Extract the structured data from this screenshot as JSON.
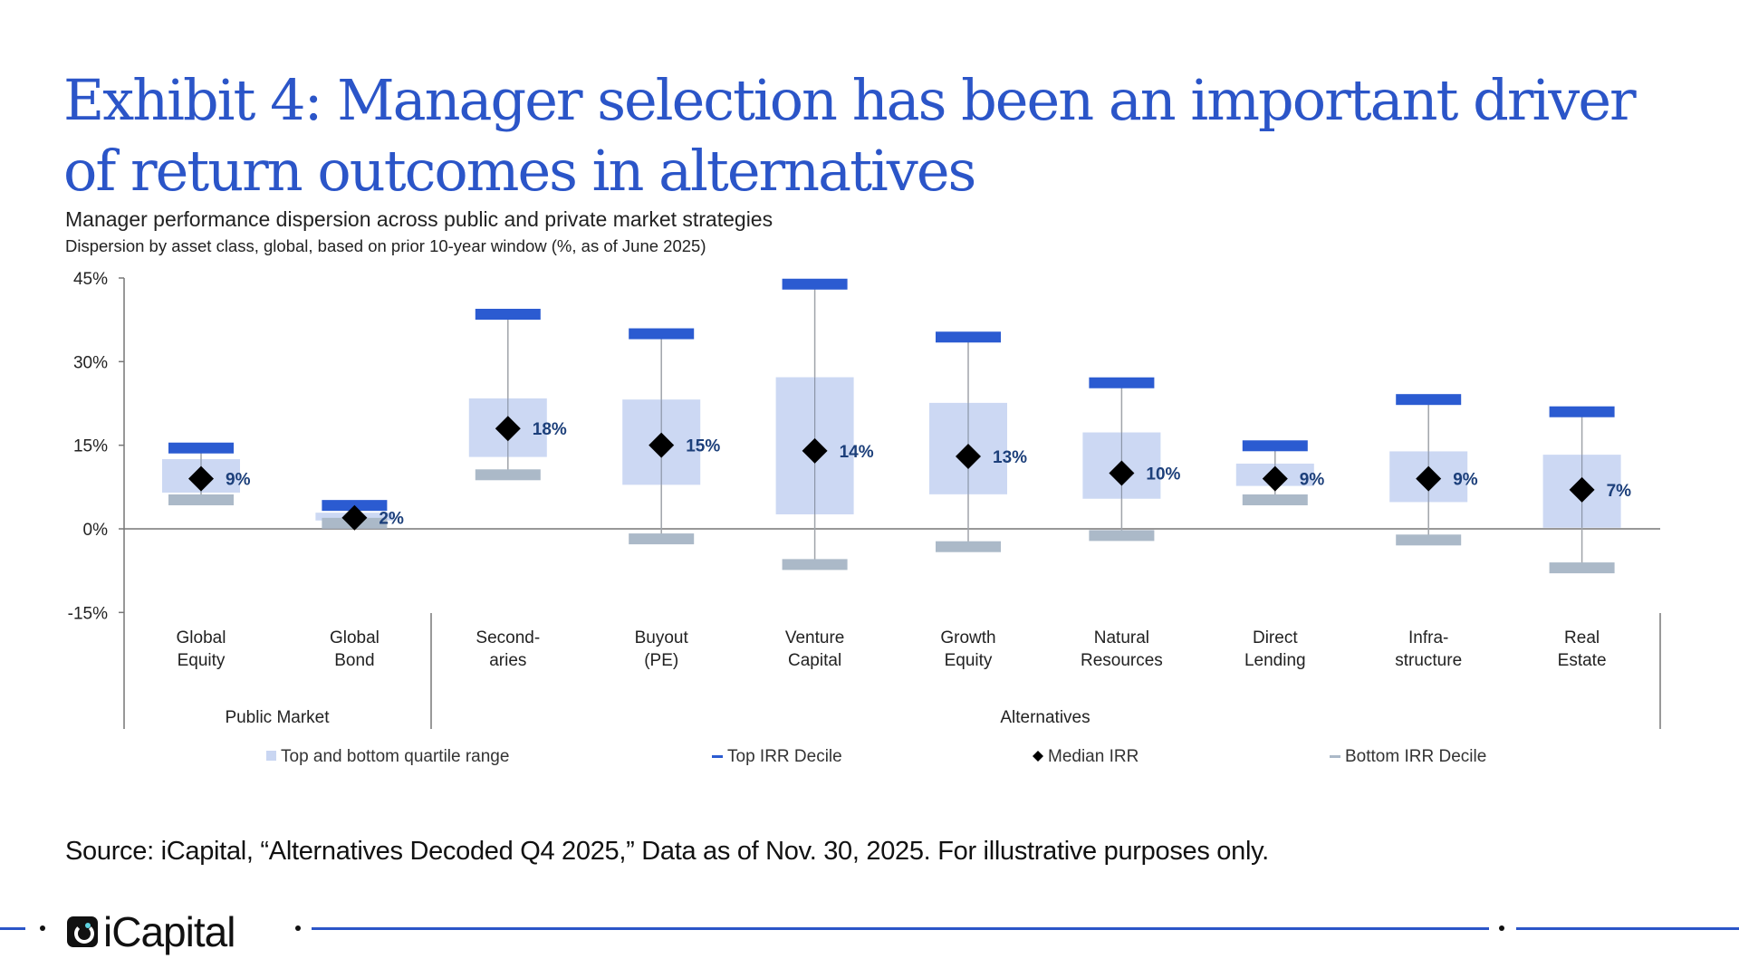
{
  "title": "Exhibit 4: Manager selection has been an important driver of return outcomes in alternatives",
  "subtitle": "Manager performance dispersion across public and private market strategies",
  "subsubtitle": "Dispersion by asset class, global, based on prior 10-year window (%, as of June 2025)",
  "chart_data": {
    "type": "box-range",
    "ylim": [
      -15,
      45
    ],
    "yticks": [
      45,
      30,
      15,
      0,
      -15
    ],
    "ytick_labels": [
      "45%",
      "30%",
      "15%",
      "0%",
      "-15%"
    ],
    "grid": false,
    "legend_position": "bottom",
    "categories": [
      [
        "Global",
        "Equity"
      ],
      [
        "Global",
        "Bond"
      ],
      [
        "Second-",
        "aries"
      ],
      [
        "Buyout",
        "(PE)"
      ],
      [
        "Venture",
        "Capital"
      ],
      [
        "Growth",
        "Equity"
      ],
      [
        "Natural",
        "Resources"
      ],
      [
        "Direct",
        "Lending"
      ],
      [
        "Infra-",
        "structure"
      ],
      [
        "Real",
        "Estate"
      ]
    ],
    "groups": [
      {
        "label": "Public Market",
        "categories": 2
      },
      {
        "label": "Alternatives",
        "categories": 8
      }
    ],
    "series": [
      {
        "name": "Top IRR Decile",
        "values": [
          14.5,
          4.2,
          38.5,
          35.0,
          43.9,
          34.4,
          26.2,
          14.9,
          23.2,
          21.0
        ],
        "color": "#2b5bd1"
      },
      {
        "name": "Top and bottom quartile range (top)",
        "values": [
          12.5,
          2.9,
          23.4,
          23.2,
          27.2,
          22.6,
          17.3,
          11.7,
          13.9,
          13.3
        ],
        "color": "#c9d6f2"
      },
      {
        "name": "Top and bottom quartile range (bottom)",
        "values": [
          6.5,
          1.5,
          12.9,
          7.9,
          2.6,
          6.2,
          5.4,
          7.7,
          4.8,
          0.2
        ],
        "color": "#c9d6f2"
      },
      {
        "name": "Median IRR",
        "values": [
          9,
          2,
          18,
          15,
          14,
          13,
          10,
          9,
          9,
          7
        ],
        "labels": [
          "9%",
          "2%",
          "18%",
          "15%",
          "14%",
          "13%",
          "10%",
          "9%",
          "9%",
          "7%"
        ],
        "color": "#000000"
      },
      {
        "name": "Bottom IRR Decile",
        "values": [
          5.2,
          1.0,
          9.7,
          -1.8,
          -6.4,
          -3.2,
          -1.2,
          5.2,
          -2.0,
          -7.0
        ],
        "color": "#abb9c8"
      }
    ],
    "legend": [
      "Top and bottom quartile range",
      "Top IRR Decile",
      "Median IRR",
      "Bottom IRR Decile"
    ],
    "label_color": "#1c3f7a"
  },
  "source": "Source: iCapital, “Alternatives Decoded Q4 2025,” Data as of Nov. 30, 2025. For illustrative purposes only.",
  "logo": "iCapital"
}
